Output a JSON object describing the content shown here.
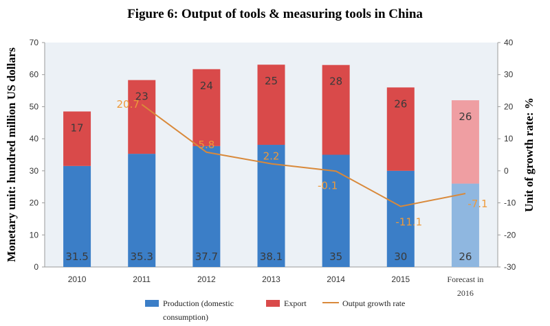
{
  "title": "Figure 6: Output of tools & measuring tools in China",
  "chart_data": {
    "type": "bar",
    "title": "Figure 6: Output of tools & measuring tools in China",
    "categories": [
      "2010",
      "2011",
      "2012",
      "2013",
      "2014",
      "2015",
      "Forecast in 2016"
    ],
    "series": [
      {
        "name": "Production (domestic consumption)",
        "values": [
          31.5,
          35.3,
          37.7,
          38.1,
          35,
          30,
          26
        ],
        "labels": [
          "31.5",
          "35.3",
          "37.7",
          "38.1",
          "35",
          "30",
          "26"
        ]
      },
      {
        "name": "Export",
        "values": [
          17,
          23,
          24,
          25,
          28,
          26,
          26
        ],
        "labels": [
          "17",
          "23",
          "24",
          "25",
          "28",
          "26",
          "26"
        ]
      },
      {
        "name": "Output growth rate",
        "type": "line",
        "axis": "right",
        "values": [
          null,
          20.7,
          5.8,
          2.2,
          -0.1,
          -11.1,
          -7.1
        ],
        "labels": [
          "",
          "20.7",
          "5.8",
          "2.2",
          "-0.1",
          "-11.1",
          "-7.1"
        ]
      }
    ],
    "ylabel": "Monetary unit: hundred million US dollars",
    "ylabel_right": "Unit of growth rate: %",
    "ylim": [
      0,
      70
    ],
    "ylim_right": [
      -30,
      40
    ],
    "yticks": [
      "0",
      "10",
      "20",
      "30",
      "40",
      "50",
      "60",
      "70"
    ],
    "yticks_right": [
      "-30",
      "-20",
      "-10",
      "0",
      "10",
      "20",
      "30",
      "40"
    ],
    "stacked": true,
    "grid": false,
    "legend_position": "bottom",
    "forecast_category": "Forecast in 2016",
    "colors": {
      "production": "#3b7ec7",
      "export": "#d94a4a",
      "production_forecast": "#8fb7e0",
      "export_forecast": "#ef9ea2",
      "rate": "#d9893a",
      "plot_bg": "#ecf1f6"
    }
  }
}
